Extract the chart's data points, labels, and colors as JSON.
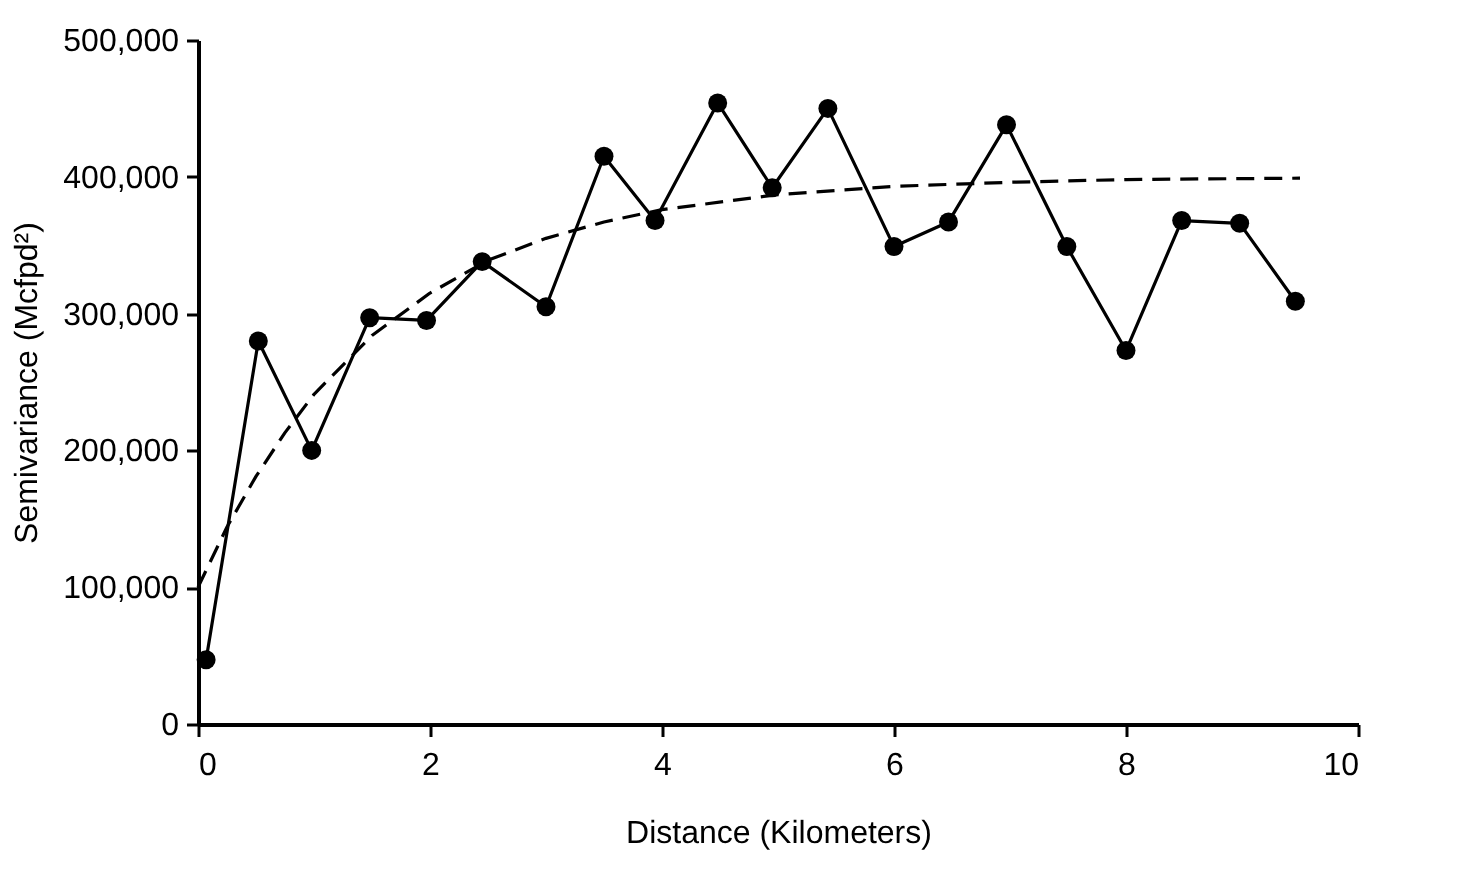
{
  "chart_data": {
    "type": "line",
    "xlabel": "Distance (Kilometers)",
    "ylabel": "Semivariance (Mcfpd²)",
    "xlim": [
      0,
      10
    ],
    "xticks": [
      0,
      2,
      4,
      6,
      8,
      10
    ],
    "ylim": [
      0,
      500000
    ],
    "yticks": [
      {
        "value": 0,
        "label": "0"
      },
      {
        "value": 100000,
        "label": "100,000"
      },
      {
        "value": 200000,
        "label": "200,000"
      },
      {
        "value": 300000,
        "label": "300,000"
      },
      {
        "value": 400000,
        "label": "400,000"
      },
      {
        "value": 500000,
        "label": "500,000"
      }
    ],
    "grid": false,
    "series": [
      {
        "color": "#000000",
        "marker": "circle",
        "line_style": "solid",
        "x": [
          0.07,
          0.52,
          0.98,
          1.48,
          1.97,
          2.45,
          3.0,
          3.5,
          3.94,
          4.48,
          4.95,
          5.43,
          6.0,
          6.47,
          6.97,
          7.49,
          8.0,
          8.48,
          8.98,
          9.46
        ],
        "values": [
          47000,
          280000,
          200000,
          297000,
          295000,
          338000,
          305000,
          415000,
          368000,
          454000,
          392000,
          450000,
          349000,
          367000,
          438000,
          349000,
          273000,
          368000,
          366000,
          309000
        ]
      },
      {
        "type": "line",
        "color": "#000000",
        "marker": "none",
        "line_style": "dashed",
        "x": [
          0,
          0.25,
          0.5,
          0.75,
          1,
          1.5,
          2,
          2.5,
          3,
          3.5,
          4,
          5,
          6,
          7,
          8,
          9.5
        ],
        "values": [
          100000,
          144000,
          181000,
          213000,
          241000,
          284000,
          315000,
          339000,
          355000,
          367000,
          376000,
          387000,
          393000,
          396000,
          398000,
          399000
        ]
      }
    ]
  }
}
